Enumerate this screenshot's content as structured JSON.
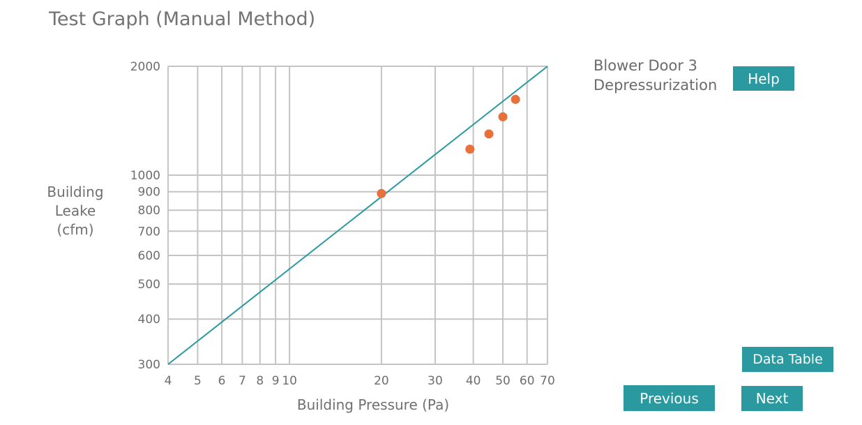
{
  "title": "Test Graph (Manual Method)",
  "test_name": [
    "Blower Door 3",
    "Depressurization"
  ],
  "buttons": {
    "help": "Help",
    "data_table": "Data Table",
    "previous": "Previous",
    "next": "Next"
  },
  "colors": {
    "accent": "#2a9aa0",
    "point": "#e8703a",
    "fit_line": "#2a9aa0",
    "grid": "#c4c4c4"
  },
  "chart_data": {
    "type": "scatter",
    "xscale": "log",
    "yscale": "log",
    "xlim": [
      4,
      70
    ],
    "ylim": [
      300,
      2000
    ],
    "grid": true,
    "xlabel": "Building Pressure (Pa)",
    "ylabel": [
      "Building",
      "Leake",
      "(cfm)"
    ],
    "x_ticks": [
      4,
      5,
      6,
      7,
      8,
      9,
      10,
      20,
      30,
      40,
      50,
      60,
      70
    ],
    "x_tick_labels": [
      "4",
      "5",
      "6",
      "7",
      "8",
      "9",
      "10",
      "20",
      "30",
      "40",
      "50",
      "60",
      "70"
    ],
    "y_ticks": [
      300,
      400,
      500,
      600,
      700,
      800,
      900,
      1000,
      2000
    ],
    "y_tick_labels": [
      "300",
      "400",
      "500",
      "600",
      "700",
      "800",
      "900",
      "1000",
      "2000"
    ],
    "series": [
      {
        "type": "scatter",
        "x": [
          20,
          39,
          45,
          50,
          55
        ],
        "y": [
          890,
          1180,
          1300,
          1450,
          1620
        ]
      },
      {
        "type": "line",
        "x": [
          4,
          70
        ],
        "y": [
          300,
          2000
        ]
      }
    ]
  }
}
